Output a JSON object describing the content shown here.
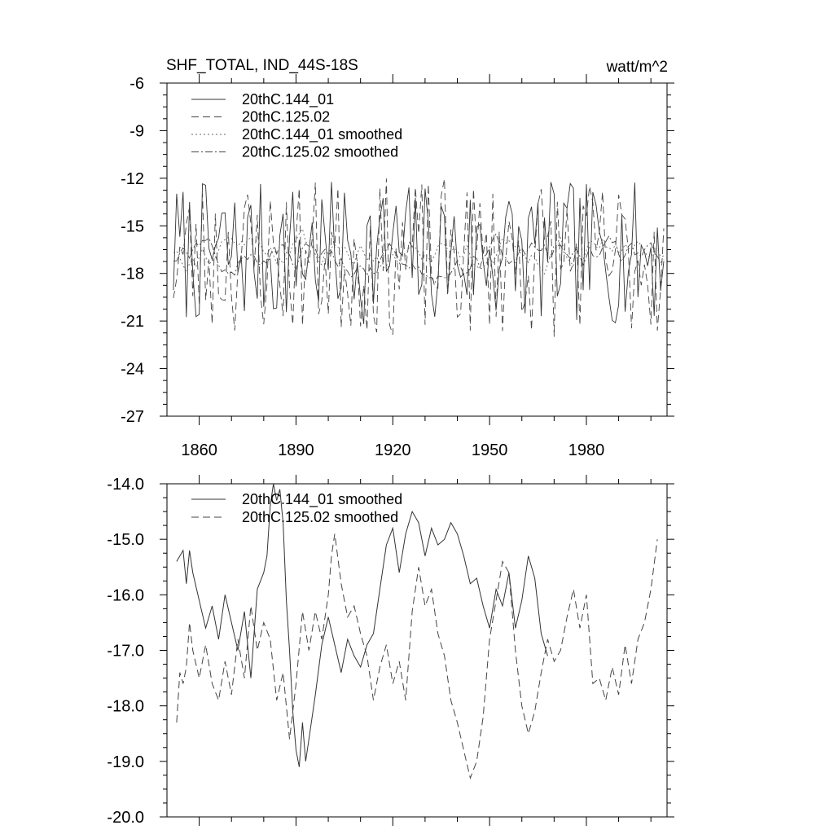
{
  "chart_data": [
    {
      "type": "line",
      "title": "SHF_TOTAL, IND_44S-18S",
      "units": "watt/m^2",
      "xlabel": "",
      "ylabel": "",
      "xlim": [
        1850,
        2005
      ],
      "ylim": [
        -27,
        -6
      ],
      "yticks": [
        -6,
        -9,
        -12,
        -15,
        -18,
        -21,
        -24,
        -27
      ],
      "ytick_labels": [
        "-6",
        "-9",
        "-12",
        "-15",
        "-18",
        "-21",
        "-24",
        "-27"
      ],
      "xticks": [
        1860,
        1890,
        1920,
        1950,
        1980
      ],
      "xtick_labels": [
        "1860",
        "1890",
        "1920",
        "1950",
        "1980"
      ],
      "legend_position": "top-left",
      "series": [
        {
          "name": "20thC.144_01",
          "style": "solid"
        },
        {
          "name": "20thC.125.02",
          "style": "dashed"
        },
        {
          "name": "20thC.144_01 smoothed",
          "style": "dotted"
        },
        {
          "name": "20thC.125.02 smoothed",
          "style": "dashdot"
        }
      ]
    },
    {
      "type": "line",
      "title": "",
      "xlabel": "",
      "ylabel": "",
      "xlim": [
        1850,
        2005
      ],
      "ylim": [
        -20,
        -14
      ],
      "yticks": [
        -14,
        -15,
        -16,
        -17,
        -18,
        -19,
        -20
      ],
      "ytick_labels": [
        "-14.0",
        "-15.0",
        "-16.0",
        "-17.0",
        "-18.0",
        "-19.0",
        "-20.0"
      ],
      "xticks": [
        1860,
        1890,
        1920,
        1950,
        1980
      ],
      "legend_position": "top-left",
      "series": [
        {
          "name": "20thC.144_01 smoothed",
          "style": "solid",
          "x": [
            1853,
            1855,
            1856,
            1857,
            1858,
            1860,
            1862,
            1864,
            1866,
            1868,
            1870,
            1872,
            1874,
            1876,
            1878,
            1880,
            1881,
            1882,
            1883,
            1884,
            1885,
            1886,
            1887,
            1888,
            1889,
            1890,
            1891,
            1892,
            1893,
            1894,
            1896,
            1898,
            1900,
            1902,
            1904,
            1906,
            1908,
            1910,
            1912,
            1914,
            1916,
            1918,
            1920,
            1922,
            1924,
            1926,
            1928,
            1930,
            1932,
            1934,
            1936,
            1938,
            1940,
            1942,
            1944,
            1946,
            1948,
            1950,
            1952,
            1954,
            1956,
            1958,
            1960,
            1962,
            1964,
            1966,
            1968
          ],
          "y": [
            -15.4,
            -15.2,
            -15.8,
            -15.2,
            -15.6,
            -16.1,
            -16.6,
            -16.2,
            -16.8,
            -16.0,
            -16.5,
            -17.0,
            -16.3,
            -17.5,
            -15.9,
            -15.6,
            -15.3,
            -14.4,
            -14.0,
            -14.3,
            -14.1,
            -14.7,
            -16.1,
            -17.0,
            -18.1,
            -18.8,
            -19.1,
            -18.3,
            -19.0,
            -18.6,
            -17.8,
            -16.9,
            -16.4,
            -16.9,
            -17.4,
            -16.8,
            -17.1,
            -17.3,
            -16.9,
            -16.7,
            -15.9,
            -15.1,
            -14.8,
            -15.6,
            -14.9,
            -14.5,
            -14.7,
            -15.3,
            -14.8,
            -15.1,
            -15.0,
            -14.7,
            -14.9,
            -15.3,
            -15.8,
            -15.7,
            -16.2,
            -16.6,
            -15.9,
            -16.2,
            -15.6,
            -16.6,
            -16.1,
            -15.3,
            -15.7,
            -16.7,
            -17.1
          ]
        },
        {
          "name": "20thC.125.02 smoothed",
          "style": "dashed",
          "x": [
            1853,
            1854,
            1855,
            1856,
            1857,
            1858,
            1860,
            1862,
            1864,
            1866,
            1868,
            1870,
            1872,
            1874,
            1876,
            1878,
            1880,
            1882,
            1884,
            1886,
            1888,
            1890,
            1892,
            1894,
            1896,
            1898,
            1900,
            1901,
            1902,
            1904,
            1906,
            1908,
            1910,
            1912,
            1914,
            1916,
            1918,
            1920,
            1922,
            1924,
            1926,
            1928,
            1930,
            1932,
            1934,
            1936,
            1938,
            1940,
            1942,
            1944,
            1946,
            1948,
            1950,
            1952,
            1954,
            1956,
            1958,
            1960,
            1962,
            1964,
            1966,
            1968,
            1970,
            1972,
            1974,
            1976,
            1978,
            1980,
            1982,
            1984,
            1986,
            1988,
            1990,
            1992,
            1994,
            1996,
            1998,
            2000,
            2002
          ],
          "y": [
            -18.3,
            -17.4,
            -17.6,
            -17.3,
            -16.5,
            -17.0,
            -17.5,
            -16.9,
            -17.6,
            -17.9,
            -17.2,
            -17.8,
            -16.8,
            -17.5,
            -16.2,
            -17.0,
            -16.5,
            -16.8,
            -17.9,
            -17.4,
            -18.6,
            -17.6,
            -16.3,
            -17.0,
            -16.3,
            -16.8,
            -16.0,
            -15.3,
            -14.9,
            -15.8,
            -16.4,
            -16.2,
            -16.7,
            -17.1,
            -17.9,
            -17.3,
            -16.9,
            -17.6,
            -17.2,
            -17.9,
            -16.3,
            -15.5,
            -16.2,
            -15.9,
            -16.7,
            -17.1,
            -17.9,
            -18.3,
            -18.8,
            -19.3,
            -19.0,
            -18.2,
            -16.8,
            -16.1,
            -15.4,
            -15.6,
            -17.0,
            -18.0,
            -18.5,
            -18.1,
            -17.4,
            -16.8,
            -17.2,
            -17.0,
            -16.4,
            -15.9,
            -16.6,
            -16.0,
            -17.6,
            -17.5,
            -17.9,
            -17.3,
            -17.8,
            -16.9,
            -17.6,
            -16.8,
            -16.5,
            -15.9,
            -15.0
          ]
        }
      ]
    }
  ]
}
